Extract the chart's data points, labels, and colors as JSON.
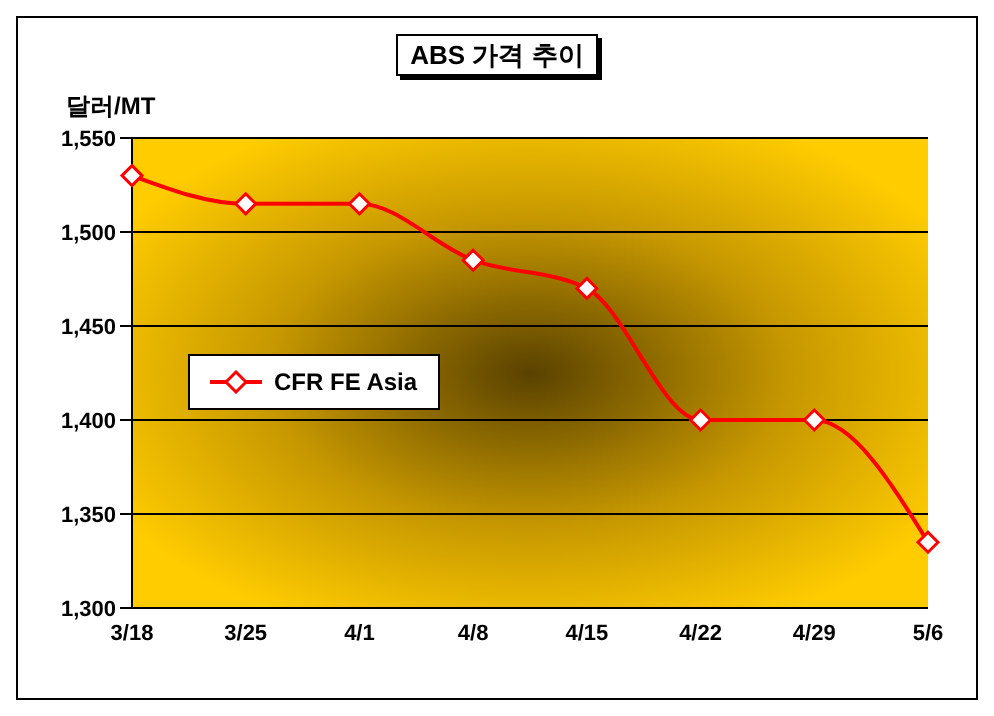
{
  "chart_data": {
    "type": "line",
    "title": "ABS 가격 추이",
    "ylabel": "달러/MT",
    "categories": [
      "3/18",
      "3/25",
      "4/1",
      "4/8",
      "4/15",
      "4/22",
      "4/29",
      "5/6"
    ],
    "series": [
      {
        "name": "CFR FE Asia",
        "color": "#ff0000",
        "values": [
          1530,
          1515,
          1515,
          1485,
          1470,
          1400,
          1400,
          1335
        ]
      }
    ],
    "ylim": [
      1300,
      1550
    ],
    "yticks": [
      {
        "value": 1300,
        "label": "1,300"
      },
      {
        "value": 1350,
        "label": "1,350"
      },
      {
        "value": 1400,
        "label": "1,400"
      },
      {
        "value": 1450,
        "label": "1,450"
      },
      {
        "value": 1500,
        "label": "1,500"
      },
      {
        "value": 1550,
        "label": "1,550"
      }
    ],
    "grid": "y",
    "legend": "left",
    "marker": "diamond",
    "line_style": "solid"
  }
}
